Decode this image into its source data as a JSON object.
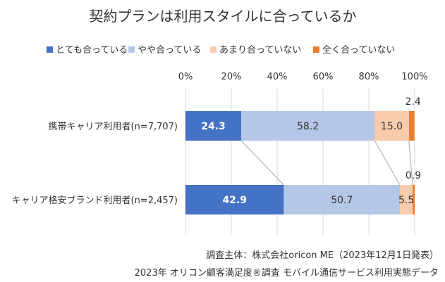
{
  "chart_data": {
    "type": "bar",
    "orientation": "horizontal-stacked-100",
    "title": "契約プランは利用スタイルに合っているか",
    "xlim": [
      0,
      100
    ],
    "x_ticks": [
      "0%",
      "20%",
      "40%",
      "60%",
      "80%",
      "100%"
    ],
    "legend_position": "top",
    "categories": [
      "携帯キャリア利用者(n=7,707)",
      "キャリア格安ブランド利用者(n=2,457)"
    ],
    "series": [
      {
        "name": "とても合っている",
        "color": "#4472c4",
        "label_color": "#ffffff",
        "label_bold": true,
        "values": [
          24.3,
          42.9
        ]
      },
      {
        "name": "やや合っている",
        "color": "#b4c7e7",
        "label_color": "#333333",
        "label_bold": false,
        "values": [
          58.2,
          50.7
        ]
      },
      {
        "name": "あまり合っていない",
        "color": "#f8cbad",
        "label_color": "#333333",
        "label_bold": false,
        "values": [
          15.0,
          5.5
        ]
      },
      {
        "name": "全く合っていない",
        "color": "#ed7d31",
        "label_color": "#333333",
        "label_bold": false,
        "values": [
          2.4,
          0.9
        ]
      }
    ],
    "data_labels": [
      [
        "24.3",
        "58.2",
        "15.0",
        "2.4"
      ],
      [
        "42.9",
        "50.7",
        "5.5",
        "0.9"
      ]
    ],
    "series_lines": true,
    "gridlines": true
  },
  "footer": {
    "source": "調査主体：株式会社oricon ME（2023年12月1日発表）",
    "survey": "2023年 オリコン顧客満足度®調査 モバイル通信サービス利用実態データ"
  }
}
